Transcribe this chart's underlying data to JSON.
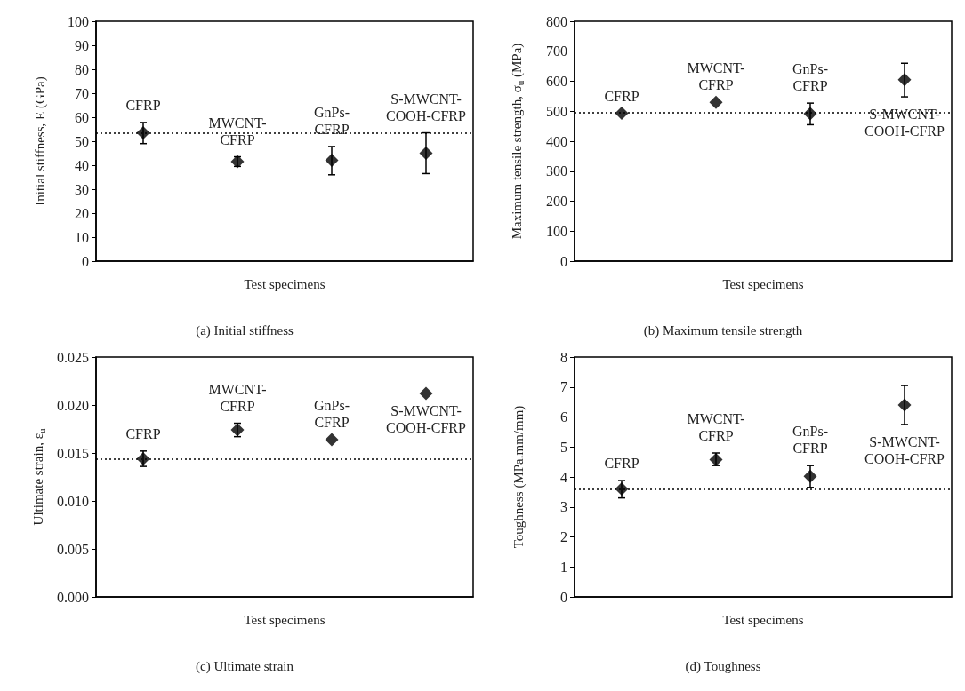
{
  "chart_data": [
    {
      "type": "scatter",
      "title": "(a) Initial stiffness",
      "xlabel": "Test specimens",
      "ylabel": "Initial stiffness, E (GPa)",
      "categories": [
        null,
        null,
        null,
        null
      ],
      "values": [
        53.5,
        41.5,
        42,
        45
      ],
      "errors": [
        [
          49,
          57.8
        ],
        [
          39.5,
          43.5
        ],
        [
          36,
          47.8
        ],
        [
          36.5,
          53.5
        ]
      ],
      "color": "#000000",
      "marker": "diamond",
      "ylim": [
        0,
        100
      ],
      "yticks": [
        0,
        10,
        20,
        30,
        40,
        50,
        60,
        70,
        80,
        90,
        100
      ],
      "tick_labels": "y",
      "ref_lines": [
        {
          "axis": "y",
          "value": 53.5,
          "line_style": "dotted",
          "color": "#000000"
        }
      ],
      "annotations": [
        "CFRP",
        "MWCNT-\nCFRP",
        "GnPs-\nCFRP",
        "S-MWCNT-\nCOOH-CFRP"
      ]
    },
    {
      "type": "scatter",
      "title": "(b) Maximum tensile strength",
      "xlabel": "Test specimens",
      "ylabel": "Maximum tensile strength, σ$_{u}$ (MPa)",
      "categories": [
        null,
        null,
        null,
        null
      ],
      "values": [
        493,
        530,
        492,
        605
      ],
      "errors": [
        null,
        null,
        [
          455,
          527
        ],
        [
          548,
          660
        ]
      ],
      "color": "#000000",
      "marker": "diamond",
      "ylim": [
        0,
        800
      ],
      "yticks": [
        0,
        100,
        200,
        300,
        400,
        500,
        600,
        700,
        800
      ],
      "tick_labels": "y",
      "ref_lines": [
        {
          "axis": "y",
          "value": 495,
          "line_style": "dotted",
          "color": "#000000"
        }
      ],
      "annotations": [
        "CFRP",
        "MWCNT-\nCFRP",
        "GnPs-\nCFRP",
        "S-MWCNT-\nCOOH-CFRP"
      ]
    },
    {
      "type": "scatter",
      "title": "(c) Ultimate strain",
      "xlabel": "Test specimens",
      "ylabel": "Ultimate strain, ε$_{u}$",
      "categories": [
        null,
        null,
        null,
        null
      ],
      "values": [
        0.0144,
        0.0174,
        0.0164,
        0.0212
      ],
      "errors": [
        [
          0.0136,
          0.0152
        ],
        [
          0.0167,
          0.0181
        ],
        null,
        null
      ],
      "color": "#000000",
      "marker": "diamond",
      "ylim": [
        0,
        0.025
      ],
      "yticks": [
        {
          "value": 0,
          "label": "0.000"
        },
        {
          "value": 0.005,
          "label": "0.005"
        },
        {
          "value": 0.01,
          "label": "0.010"
        },
        {
          "value": 0.015,
          "label": "0.015"
        },
        {
          "value": 0.02,
          "label": "0.020"
        },
        {
          "value": 0.025,
          "label": "0.025"
        }
      ],
      "tick_labels": "y",
      "ref_lines": [
        {
          "axis": "y",
          "value": 0.0144,
          "line_style": "dotted",
          "color": "#000000"
        }
      ],
      "annotations": [
        "CFRP",
        "MWCNT-\nCFRP",
        "GnPs-\nCFRP",
        "S-MWCNT-\nCOOH-CFRP"
      ]
    },
    {
      "type": "scatter",
      "title": "(d) Toughness",
      "xlabel": "Test specimens",
      "ylabel": "Toughness (MPa.mm/mm)",
      "categories": [
        null,
        null,
        null,
        null
      ],
      "values": [
        3.6,
        4.58,
        4.02,
        6.4
      ],
      "errors": [
        [
          3.3,
          3.88
        ],
        [
          4.38,
          4.8
        ],
        [
          3.65,
          4.38
        ],
        [
          5.75,
          7.05
        ]
      ],
      "color": "#000000",
      "marker": "diamond",
      "ylim": [
        0,
        8
      ],
      "yticks": [
        0,
        1,
        2,
        3,
        4,
        5,
        6,
        7,
        8
      ],
      "tick_labels": "y",
      "ref_lines": [
        {
          "axis": "y",
          "value": 3.6,
          "line_style": "dotted",
          "color": "#000000"
        }
      ],
      "annotations": [
        "CFRP",
        "MWCNT-\nCFRP",
        "GnPs-\nCFRP",
        "S-MWCNT-\nCOOH-CFRP"
      ]
    }
  ]
}
